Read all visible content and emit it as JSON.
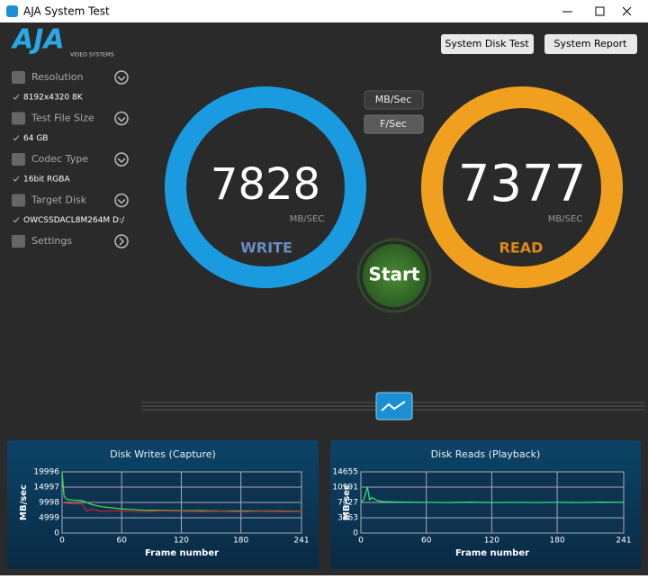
{
  "window": {
    "title": "AJA System Test"
  },
  "logo": {
    "brand": "AJA",
    "tagline": "VIDEO SYSTEMS"
  },
  "buttons": [
    "System Disk Test",
    "System Report"
  ],
  "sidebar": [
    {
      "label": "Resolution",
      "value": "8192x4320 8K"
    },
    {
      "label": "Test File Size",
      "value": "64 GB"
    },
    {
      "label": "Codec Type",
      "value": "16bit RGBA"
    },
    {
      "label": "Target Disk",
      "value": "OWCSSDACL8M264M D:/"
    },
    {
      "label": "Settings"
    }
  ],
  "units": [
    "MB/Sec",
    "F/Sec"
  ],
  "write": {
    "value": "7828",
    "unit": "MB/SEC",
    "label": "WRITE"
  },
  "read": {
    "value": "7377",
    "unit": "MB/SEC",
    "label": "READ"
  },
  "start": "Start",
  "charts": [
    {
      "title": "Disk Writes (Capture)",
      "y_label": "MB/sec",
      "x_label": "Frame number",
      "xlim": [
        0,
        241
      ],
      "ylim": [
        0,
        19996
      ],
      "xticks": [
        0,
        60,
        120,
        180,
        241
      ],
      "yticks": [
        0,
        4999,
        9998,
        14997,
        19996
      ],
      "x": [
        0,
        2,
        5,
        10,
        20,
        25,
        30,
        40,
        60,
        80,
        100,
        120,
        140,
        160,
        180,
        200,
        220,
        241
      ],
      "series": [
        {
          "color": "#3fd64b",
          "values": [
            19996,
            12000,
            11000,
            10800,
            10600,
            10000,
            9300,
            8600,
            7900,
            7500,
            7400,
            7300,
            7300,
            7200,
            7200,
            7200,
            7200,
            7100
          ]
        },
        {
          "color": "#c0202a",
          "values": [
            9998,
            9800,
            9700,
            9600,
            9500,
            7200,
            7800,
            7100,
            7300,
            6900,
            7200,
            7100,
            7000,
            7100,
            6900,
            7100,
            7000,
            7000
          ]
        }
      ]
    },
    {
      "title": "Disk Reads (Playback)",
      "y_label": "MB/sec",
      "x_label": "Frame number",
      "xlim": [
        0,
        241
      ],
      "ylim": [
        0,
        14655
      ],
      "xticks": [
        0,
        60,
        120,
        180,
        241
      ],
      "yticks": [
        0,
        3663,
        7327,
        10991,
        14655
      ],
      "x": [
        0,
        3,
        6,
        8,
        10,
        15,
        20,
        40,
        60,
        80,
        100,
        120,
        140,
        160,
        180,
        200,
        220,
        241
      ],
      "series": [
        {
          "color": "#2ee07a",
          "values": [
            7327,
            8200,
            11000,
            8000,
            8500,
            7800,
            7500,
            7400,
            7350,
            7300,
            7400,
            7300,
            7350,
            7300,
            7350,
            7300,
            7400,
            7350
          ]
        }
      ]
    }
  ]
}
